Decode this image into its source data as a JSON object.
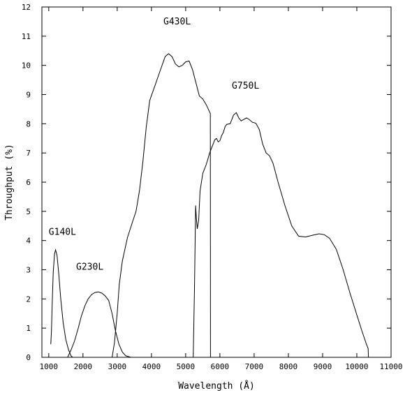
{
  "chart_data": {
    "type": "line",
    "title": "",
    "xlabel": "Wavelength (Å)",
    "ylabel": "Throughput (%)",
    "xlim": [
      800,
      11000
    ],
    "ylim": [
      0,
      12
    ],
    "x_ticks": [
      1000,
      2000,
      3000,
      4000,
      5000,
      6000,
      7000,
      8000,
      9000,
      10000,
      11000
    ],
    "y_ticks": [
      0,
      1,
      2,
      3,
      4,
      5,
      6,
      7,
      8,
      9,
      10,
      11,
      12
    ],
    "grid": false,
    "legend": "none",
    "series": [
      {
        "name": "G140L",
        "label_at": [
          1000,
          4.2
        ],
        "points": [
          [
            1060,
            0.45
          ],
          [
            1080,
            0.9
          ],
          [
            1100,
            1.8
          ],
          [
            1130,
            2.9
          ],
          [
            1170,
            3.55
          ],
          [
            1200,
            3.68
          ],
          [
            1240,
            3.5
          ],
          [
            1290,
            2.9
          ],
          [
            1350,
            2.0
          ],
          [
            1420,
            1.2
          ],
          [
            1500,
            0.6
          ],
          [
            1580,
            0.25
          ],
          [
            1650,
            0.05
          ],
          [
            1700,
            0
          ]
        ]
      },
      {
        "name": "G230L",
        "label_at": [
          1800,
          3.0
        ],
        "points": [
          [
            1550,
            0
          ],
          [
            1650,
            0.25
          ],
          [
            1750,
            0.55
          ],
          [
            1850,
            0.95
          ],
          [
            1950,
            1.4
          ],
          [
            2050,
            1.75
          ],
          [
            2150,
            2.0
          ],
          [
            2250,
            2.15
          ],
          [
            2350,
            2.22
          ],
          [
            2450,
            2.24
          ],
          [
            2550,
            2.2
          ],
          [
            2650,
            2.1
          ],
          [
            2750,
            1.95
          ],
          [
            2850,
            1.5
          ],
          [
            2950,
            0.9
          ],
          [
            3050,
            0.45
          ],
          [
            3150,
            0.18
          ],
          [
            3250,
            0.05
          ],
          [
            3400,
            0
          ]
        ]
      },
      {
        "name": "G430L",
        "label_at": [
          4350,
          11.4
        ],
        "points": [
          [
            2850,
            0
          ],
          [
            2920,
            0.5
          ],
          [
            3000,
            1.5
          ],
          [
            3060,
            2.5
          ],
          [
            3150,
            3.3
          ],
          [
            3300,
            4.1
          ],
          [
            3450,
            4.65
          ],
          [
            3550,
            5.0
          ],
          [
            3650,
            5.7
          ],
          [
            3750,
            6.7
          ],
          [
            3850,
            7.9
          ],
          [
            3950,
            8.8
          ],
          [
            4100,
            9.3
          ],
          [
            4250,
            9.8
          ],
          [
            4400,
            10.3
          ],
          [
            4500,
            10.4
          ],
          [
            4600,
            10.3
          ],
          [
            4700,
            10.05
          ],
          [
            4800,
            9.95
          ],
          [
            4900,
            10.0
          ],
          [
            5000,
            10.12
          ],
          [
            5100,
            10.15
          ],
          [
            5200,
            9.85
          ],
          [
            5300,
            9.4
          ],
          [
            5400,
            8.95
          ],
          [
            5500,
            8.85
          ],
          [
            5600,
            8.65
          ],
          [
            5720,
            8.35
          ],
          [
            5725,
            0
          ]
        ]
      },
      {
        "name": "G750L",
        "label_at": [
          6350,
          9.2
        ],
        "points": [
          [
            5220,
            0
          ],
          [
            5260,
            2.5
          ],
          [
            5290,
            5.2
          ],
          [
            5310,
            4.8
          ],
          [
            5340,
            4.4
          ],
          [
            5380,
            4.7
          ],
          [
            5420,
            5.7
          ],
          [
            5500,
            6.3
          ],
          [
            5600,
            6.6
          ],
          [
            5700,
            7.0
          ],
          [
            5800,
            7.3
          ],
          [
            5850,
            7.45
          ],
          [
            5900,
            7.5
          ],
          [
            5950,
            7.38
          ],
          [
            6000,
            7.42
          ],
          [
            6050,
            7.6
          ],
          [
            6100,
            7.7
          ],
          [
            6150,
            7.9
          ],
          [
            6200,
            7.98
          ],
          [
            6300,
            8.0
          ],
          [
            6400,
            8.3
          ],
          [
            6480,
            8.38
          ],
          [
            6550,
            8.2
          ],
          [
            6620,
            8.1
          ],
          [
            6700,
            8.15
          ],
          [
            6780,
            8.2
          ],
          [
            6850,
            8.15
          ],
          [
            6950,
            8.05
          ],
          [
            7050,
            8.02
          ],
          [
            7150,
            7.8
          ],
          [
            7250,
            7.3
          ],
          [
            7350,
            7.0
          ],
          [
            7450,
            6.9
          ],
          [
            7550,
            6.65
          ],
          [
            7700,
            6.0
          ],
          [
            7900,
            5.2
          ],
          [
            8100,
            4.5
          ],
          [
            8300,
            4.15
          ],
          [
            8500,
            4.12
          ],
          [
            8700,
            4.18
          ],
          [
            8900,
            4.23
          ],
          [
            9050,
            4.2
          ],
          [
            9200,
            4.08
          ],
          [
            9400,
            3.7
          ],
          [
            9600,
            3.0
          ],
          [
            9800,
            2.2
          ],
          [
            10000,
            1.45
          ],
          [
            10150,
            0.9
          ],
          [
            10280,
            0.45
          ],
          [
            10330,
            0.3
          ],
          [
            10340,
            0
          ]
        ]
      }
    ]
  }
}
